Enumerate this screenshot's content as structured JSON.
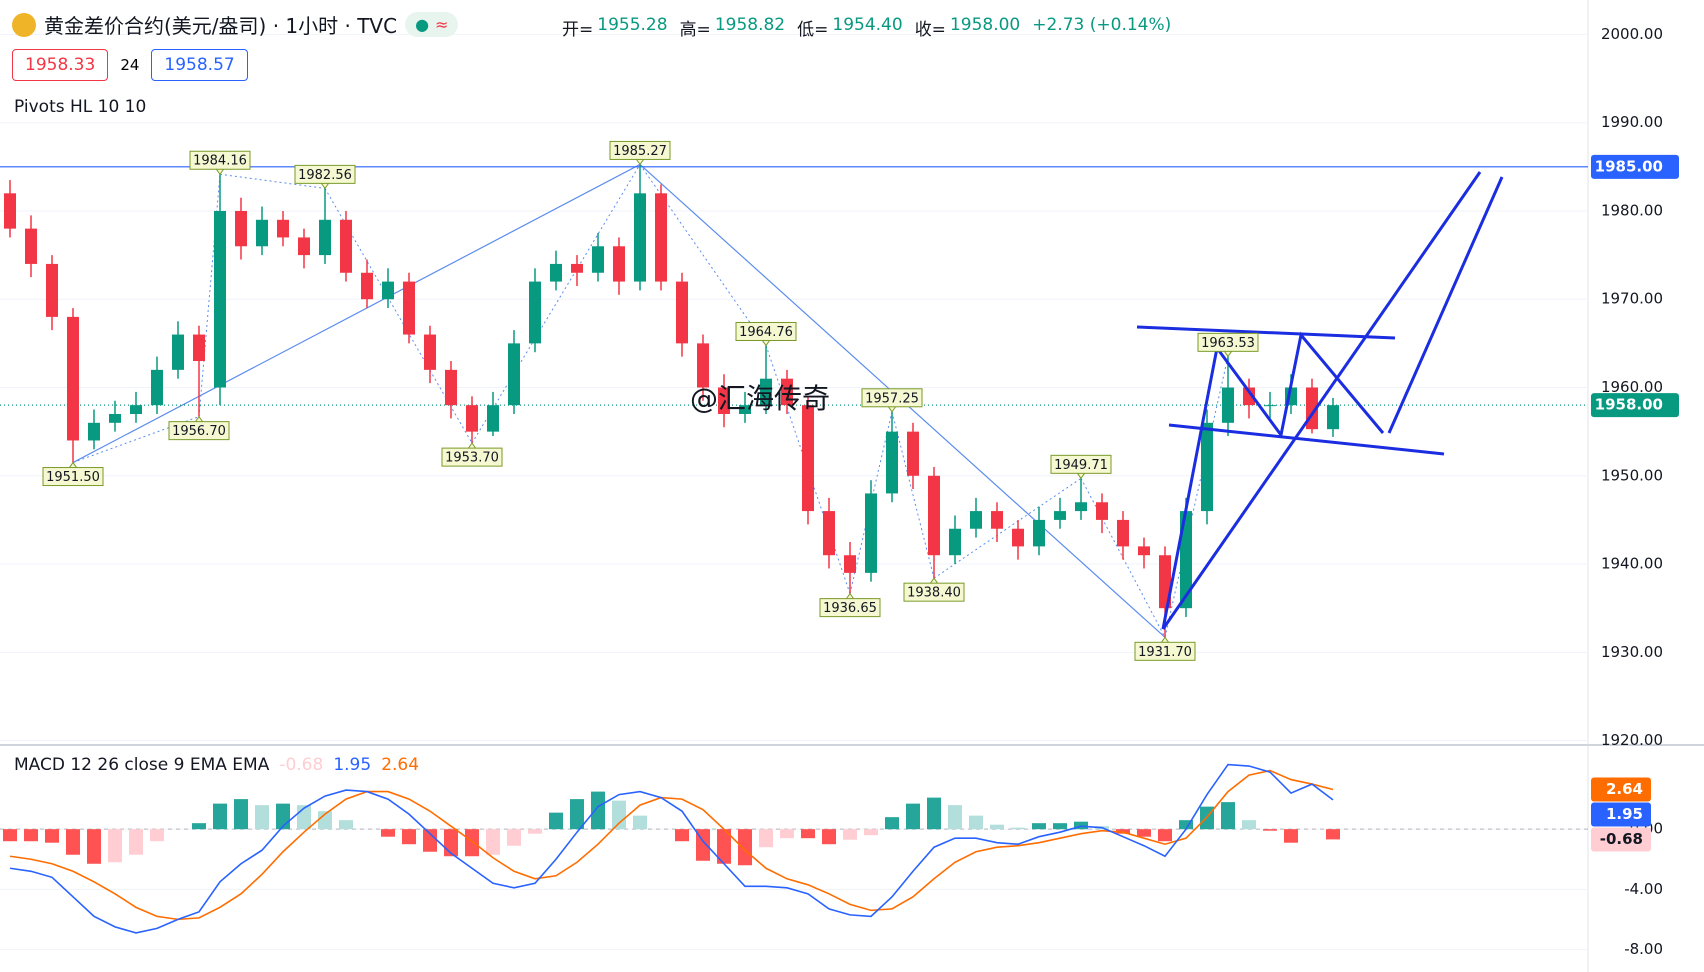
{
  "chart_data": [
    {
      "type": "candlestick",
      "header": {
        "symbol": "黄金差价合约(美元/盎司) · 1小时 · TVC",
        "ohlc": [
          {
            "label": "开=",
            "value": "1955.28"
          },
          {
            "label": "高=",
            "value": "1958.82"
          },
          {
            "label": "低=",
            "value": "1954.40"
          },
          {
            "label": "收=",
            "value": "1958.00"
          }
        ],
        "change": "+2.73 (+0.14%)",
        "bid": "1958.33",
        "spread": "24",
        "ask": "1958.57"
      },
      "indicator": "Pivots HL 10 10",
      "watermark": "@汇海传奇",
      "up_color": "#089981",
      "down_color": "#f23645",
      "open": [
        1982,
        1978,
        1974,
        1968,
        1954,
        1956,
        1957,
        1958,
        1962,
        1966,
        1960,
        1980,
        1976,
        1979,
        1977,
        1975,
        1979,
        1973,
        1970,
        1972,
        1966,
        1962,
        1958,
        1955,
        1958,
        1965,
        1972,
        1974,
        1973,
        1976,
        1972,
        1982,
        1972,
        1965,
        1960,
        1957,
        1958,
        1961,
        1958,
        1946,
        1941,
        1939,
        1948,
        1955,
        1950,
        1941,
        1944,
        1946,
        1944,
        1942,
        1945,
        1946,
        1947,
        1945,
        1942,
        1941,
        1935,
        1946,
        1956,
        1960,
        1958,
        1958,
        1960,
        1955.28
      ],
      "high": [
        1983.5,
        1979.5,
        1975,
        1969,
        1957.5,
        1958.5,
        1959.5,
        1963.5,
        1967.5,
        1967,
        1984.16,
        1981.5,
        1980.5,
        1980,
        1978,
        1982.56,
        1980,
        1974.5,
        1973.5,
        1973,
        1967,
        1963,
        1959,
        1959.5,
        1966.5,
        1973.5,
        1975.5,
        1975,
        1977.5,
        1977,
        1985.27,
        1983,
        1973,
        1966,
        1961.5,
        1959.5,
        1964.76,
        1962,
        1959,
        1947.5,
        1942.5,
        1949.5,
        1957.25,
        1956,
        1951,
        1945.5,
        1947.5,
        1947,
        1945,
        1946.5,
        1947.5,
        1949.71,
        1948,
        1946,
        1943,
        1942,
        1947.5,
        1957.5,
        1963.53,
        1961,
        1959.5,
        1961.5,
        1961,
        1958.82
      ],
      "low": [
        1977,
        1972.5,
        1966.5,
        1951.5,
        1953,
        1955,
        1956,
        1957,
        1961,
        1956.7,
        1958,
        1974.5,
        1975,
        1976,
        1973.5,
        1974,
        1972,
        1969,
        1969,
        1965,
        1960.5,
        1956.5,
        1953.7,
        1954.5,
        1957,
        1964,
        1971,
        1971.5,
        1972,
        1970.5,
        1971,
        1971,
        1963.5,
        1958.5,
        1955.5,
        1956,
        1957,
        1957,
        1944.5,
        1939.5,
        1936.65,
        1938,
        1947,
        1948.5,
        1938.4,
        1940,
        1943,
        1942.5,
        1940.5,
        1941,
        1944,
        1945,
        1943.5,
        1940.5,
        1939.5,
        1931.7,
        1934,
        1944.5,
        1954.5,
        1956.5,
        1956.5,
        1957,
        1954.8,
        1954.4
      ],
      "close": [
        1978,
        1974,
        1968,
        1954,
        1956,
        1957,
        1958,
        1962,
        1966,
        1963,
        1980,
        1976,
        1979,
        1977,
        1975,
        1979,
        1973,
        1970,
        1972,
        1966,
        1962,
        1958,
        1955,
        1958,
        1965,
        1972,
        1974,
        1973,
        1976,
        1972,
        1982,
        1972,
        1965,
        1960,
        1957,
        1958,
        1961,
        1958,
        1946,
        1941,
        1939,
        1948,
        1955,
        1950,
        1941,
        1944,
        1946,
        1944,
        1942,
        1945,
        1946,
        1947,
        1945,
        1942,
        1941,
        1935,
        1946,
        1956,
        1960,
        1958,
        1958,
        1960,
        1955.28,
        1958
      ],
      "pivots": [
        {
          "x": 3,
          "value": 1951.5,
          "label": "1951.50"
        },
        {
          "x": 9,
          "value": 1956.7,
          "label": "1956.70"
        },
        {
          "x": 10,
          "value": 1984.16,
          "label": "1984.16"
        },
        {
          "x": 15,
          "value": 1982.56,
          "label": "1982.56"
        },
        {
          "x": 22,
          "value": 1953.7,
          "label": "1953.70"
        },
        {
          "x": 30,
          "value": 1985.27,
          "label": "1985.27"
        },
        {
          "x": 36,
          "value": 1964.76,
          "label": "1964.76"
        },
        {
          "x": 40,
          "value": 1936.65,
          "label": "1936.65"
        },
        {
          "x": 42,
          "value": 1957.25,
          "label": "1957.25"
        },
        {
          "x": 44,
          "value": 1938.4,
          "label": "1938.40"
        },
        {
          "x": 51,
          "value": 1949.71,
          "label": "1949.71"
        },
        {
          "x": 55,
          "value": 1931.7,
          "label": "1931.70"
        },
        {
          "x": 58,
          "value": 1963.53,
          "label": "1963.53"
        }
      ],
      "price_lines": [
        {
          "value": 1985,
          "label": "1985.00",
          "color": "#2962ff"
        },
        {
          "value": 1958,
          "label": "1958.00",
          "color": "#089981"
        }
      ],
      "ylim": [
        1919.5,
        2003.9
      ],
      "yticks": [
        {
          "value": 1920,
          "label": "1920.00"
        },
        {
          "value": 1930,
          "label": "1930.00"
        },
        {
          "value": 1940,
          "label": "1940.00"
        },
        {
          "value": 1950,
          "label": "1950.00"
        },
        {
          "value": 1960,
          "label": "1960.00"
        },
        {
          "value": 1970,
          "label": "1970.00"
        },
        {
          "value": 1980,
          "label": "1980.00"
        },
        {
          "value": 1990,
          "label": "1990.00"
        },
        {
          "value": 2000,
          "label": "2000.00"
        }
      ],
      "grid": true
    },
    {
      "type": "macd",
      "title": "MACD 12 26 close 9 EMA EMA",
      "histogram": {
        "colors": [
          "#26a69a",
          "#b2dfdb",
          "#ff5252",
          "#ffcdd2"
        ],
        "last_label": "-0.68",
        "values": [
          -0.8,
          -0.8,
          -0.9,
          -1.7,
          -2.3,
          -2.2,
          -1.7,
          -0.8,
          0,
          0.4,
          1.7,
          2.0,
          1.6,
          1.7,
          1.6,
          1.2,
          0.6,
          0,
          -0.5,
          -1.0,
          -1.5,
          -1.8,
          -1.8,
          -1.7,
          -1.1,
          -0.3,
          1.1,
          2.0,
          2.5,
          1.9,
          0.9,
          0,
          -0.8,
          -2.1,
          -2.3,
          -2.4,
          -1.2,
          -0.6,
          -0.6,
          -1.0,
          -0.7,
          -0.4,
          0.8,
          1.7,
          2.1,
          1.6,
          0.9,
          0.3,
          0.1,
          0.4,
          0.4,
          0.5,
          0.2,
          -0.3,
          -0.5,
          -0.8,
          0.6,
          1.5,
          1.8,
          0.6,
          -0.1,
          -0.9,
          0,
          -0.68
        ]
      },
      "macd": {
        "color": "#2962ff",
        "last_label": "1.95",
        "values": [
          -2.6,
          -2.8,
          -3.2,
          -4.5,
          -5.8,
          -6.5,
          -6.9,
          -6.6,
          -6.0,
          -5.5,
          -3.5,
          -2.3,
          -1.4,
          0.2,
          1.4,
          2.2,
          2.6,
          2.5,
          2.0,
          1.0,
          -0.3,
          -1.6,
          -2.6,
          -3.6,
          -3.9,
          -3.6,
          -2.0,
          -0.2,
          1.5,
          2.3,
          2.5,
          2.1,
          1.2,
          -0.8,
          -2.3,
          -3.8,
          -3.8,
          -3.9,
          -4.3,
          -5.3,
          -5.7,
          -5.8,
          -4.5,
          -2.8,
          -1.2,
          -0.6,
          -0.6,
          -0.9,
          -1.0,
          -0.5,
          -0.2,
          0.2,
          0.1,
          -0.5,
          -1.1,
          -1.8,
          0.0,
          2.3,
          4.3,
          4.2,
          3.8,
          2.4,
          3.0,
          1.95
        ]
      },
      "signal": {
        "color": "#ff6d00",
        "last_label": "2.64",
        "values": [
          -1.8,
          -2.0,
          -2.3,
          -2.8,
          -3.5,
          -4.3,
          -5.2,
          -5.8,
          -6.0,
          -5.9,
          -5.2,
          -4.3,
          -3.0,
          -1.5,
          -0.2,
          1.0,
          2.0,
          2.5,
          2.5,
          2.0,
          1.2,
          0.2,
          -0.8,
          -1.9,
          -2.8,
          -3.3,
          -3.1,
          -2.2,
          -1.0,
          0.4,
          1.6,
          2.1,
          2.0,
          1.3,
          0.0,
          -1.4,
          -2.6,
          -3.3,
          -3.7,
          -4.3,
          -5.0,
          -5.4,
          -5.3,
          -4.5,
          -3.3,
          -2.2,
          -1.5,
          -1.2,
          -1.1,
          -0.9,
          -0.6,
          -0.3,
          -0.1,
          -0.2,
          -0.6,
          -1.0,
          -0.6,
          0.8,
          2.5,
          3.6,
          3.9,
          3.3,
          3.0,
          2.64
        ]
      },
      "ylim": [
        -9.5,
        5.4
      ],
      "yticks": [
        {
          "value": 0,
          "label": "0.00"
        },
        {
          "value": -4,
          "label": "-4.00"
        },
        {
          "value": -8,
          "label": "-8.00"
        }
      ],
      "grid": true
    }
  ]
}
